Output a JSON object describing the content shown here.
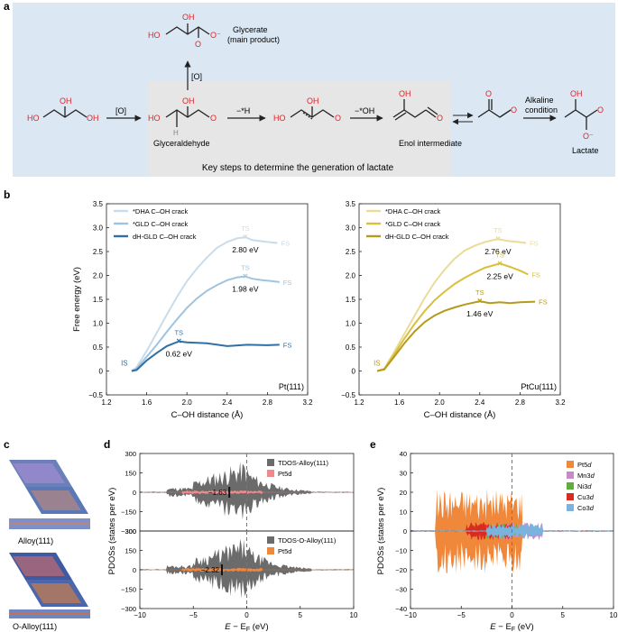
{
  "panel_a": {
    "letter": "a",
    "glycerate_name": "Glycerate",
    "glycerate_sub": "(main product)",
    "step_oxidation_up": "[O]",
    "step_oxidation": "[O]",
    "step_h": "−*H",
    "step_oh": "−*OH",
    "glyceraldehyde": "Glyceraldehyde",
    "enol": "Enol intermediate",
    "alkaline_1": "Alkaline",
    "alkaline_2": "condition",
    "lactate": "Lactate",
    "key_steps": "Key steps to determine the generation of lactate",
    "atom_ho": "HO",
    "atom_oh": "OH",
    "atom_o": "O",
    "atom_h": "H",
    "atom_o_minus": "O⁻",
    "colors": {
      "background": "#dbe8f4",
      "grey_box": "#e6e6e6",
      "oxygen": "#d9262b"
    }
  },
  "chart_data": [
    {
      "panel": "b-left",
      "letter": "b",
      "type": "line",
      "xlabel": "C–OH distance (Å)",
      "ylabel": "Free energy (eV)",
      "xlim": [
        1.2,
        3.2
      ],
      "ylim": [
        -0.5,
        3.5
      ],
      "xticks": [
        "1.2",
        "1.6",
        "2.0",
        "2.4",
        "2.8",
        "3.2"
      ],
      "yticks": [
        "−0.5",
        "0",
        "0.5",
        "1.0",
        "1.5",
        "2.0",
        "2.5",
        "3.0",
        "3.5"
      ],
      "corner_label": "Pt(111)",
      "is_label": "IS",
      "series": [
        {
          "name": "*DHA C–OH crack",
          "color": "#c9dcea",
          "ts_x": 2.58,
          "ts_y": 2.8,
          "ts_text": "2.80 eV",
          "fs_y": 2.68,
          "x": [
            1.45,
            1.5,
            1.6,
            1.7,
            1.8,
            1.9,
            2.0,
            2.1,
            2.2,
            2.3,
            2.4,
            2.5,
            2.58,
            2.65,
            2.72,
            2.8,
            2.9
          ],
          "y": [
            0,
            0.08,
            0.42,
            0.8,
            1.18,
            1.55,
            1.88,
            2.15,
            2.38,
            2.58,
            2.7,
            2.78,
            2.8,
            2.74,
            2.72,
            2.7,
            2.68
          ]
        },
        {
          "name": "*GLD C–OH crack",
          "color": "#9fc4df",
          "ts_x": 2.58,
          "ts_y": 1.98,
          "ts_text": "1.98 eV",
          "fs_y": 1.86,
          "x": [
            1.45,
            1.5,
            1.6,
            1.7,
            1.8,
            1.9,
            2.0,
            2.1,
            2.2,
            2.3,
            2.4,
            2.5,
            2.58,
            2.65,
            2.75,
            2.85,
            2.92
          ],
          "y": [
            0,
            0.05,
            0.3,
            0.55,
            0.82,
            1.08,
            1.32,
            1.52,
            1.68,
            1.8,
            1.9,
            1.96,
            1.98,
            1.93,
            1.9,
            1.88,
            1.86
          ]
        },
        {
          "name": "dH-GLD C–OH crack",
          "color": "#2f6fa6",
          "ts_x": 1.92,
          "ts_y": 0.62,
          "ts_text": "0.62 eV",
          "fs_y": 0.55,
          "x": [
            1.45,
            1.5,
            1.55,
            1.6,
            1.7,
            1.8,
            1.92,
            2.0,
            2.2,
            2.4,
            2.6,
            2.8,
            2.92
          ],
          "y": [
            0,
            0.02,
            0.12,
            0.22,
            0.38,
            0.52,
            0.62,
            0.6,
            0.58,
            0.52,
            0.55,
            0.54,
            0.55
          ]
        }
      ],
      "ts_label": "TS",
      "fs_label": "FS"
    },
    {
      "panel": "b-right",
      "type": "line",
      "xlabel": "C–OH distance (Å)",
      "ylabel": "",
      "xlim": [
        1.2,
        3.2
      ],
      "ylim": [
        -0.5,
        3.5
      ],
      "xticks": [
        "1.2",
        "1.6",
        "2.0",
        "2.4",
        "2.8",
        "3.2"
      ],
      "yticks": [
        "−0.5",
        "0",
        "0.5",
        "1.0",
        "1.5",
        "2.0",
        "2.5",
        "3.0",
        "3.5"
      ],
      "corner_label": "PtCu(111)",
      "is_label": "IS",
      "series": [
        {
          "name": "*DHA C–OH crack",
          "color": "#ecdb96",
          "ts_x": 2.58,
          "ts_y": 2.76,
          "ts_text": "2.76 eV",
          "fs_y": 2.68,
          "x": [
            1.38,
            1.45,
            1.55,
            1.65,
            1.75,
            1.85,
            1.95,
            2.05,
            2.15,
            2.25,
            2.35,
            2.45,
            2.58,
            2.68,
            2.78,
            2.86
          ],
          "y": [
            0,
            0.05,
            0.4,
            0.78,
            1.15,
            1.52,
            1.85,
            2.12,
            2.35,
            2.52,
            2.62,
            2.7,
            2.76,
            2.72,
            2.7,
            2.68
          ]
        },
        {
          "name": "*GLD C–OH crack",
          "color": "#d9bf3c",
          "ts_x": 2.6,
          "ts_y": 2.25,
          "ts_text": "2.25 eV",
          "fs_y": 2.02,
          "x": [
            1.38,
            1.45,
            1.55,
            1.65,
            1.75,
            1.85,
            1.95,
            2.05,
            2.15,
            2.25,
            2.35,
            2.45,
            2.6,
            2.7,
            2.8,
            2.88
          ],
          "y": [
            0,
            0.04,
            0.35,
            0.68,
            0.98,
            1.25,
            1.48,
            1.66,
            1.82,
            1.95,
            2.06,
            2.16,
            2.25,
            2.18,
            2.1,
            2.02
          ]
        },
        {
          "name": "dH-GLD C–OH crack",
          "color": "#b69a1c",
          "ts_x": 2.4,
          "ts_y": 1.46,
          "ts_text": "1.46 eV",
          "fs_y": 1.45,
          "x": [
            1.38,
            1.45,
            1.55,
            1.65,
            1.75,
            1.85,
            1.95,
            2.05,
            2.15,
            2.25,
            2.4,
            2.5,
            2.6,
            2.7,
            2.8,
            2.95
          ],
          "y": [
            0,
            0.03,
            0.3,
            0.58,
            0.82,
            1.02,
            1.16,
            1.26,
            1.33,
            1.39,
            1.46,
            1.42,
            1.44,
            1.42,
            1.44,
            1.45
          ]
        }
      ],
      "ts_label": "TS",
      "fs_label": "FS"
    },
    {
      "panel": "d",
      "letter": "d",
      "type": "area",
      "ylabel": "PDOSs (states per eV)",
      "xlabel_main": "E",
      "xlabel_minus": " − E",
      "xlabel_sub": "F",
      "xlabel_unit": " (eV)",
      "xlim": [
        -10,
        10
      ],
      "xticks": [
        "−10",
        "−5",
        "0",
        "5",
        "10"
      ],
      "top": {
        "ylim": [
          -300,
          300
        ],
        "yticks": [
          "300",
          "150",
          "0",
          "−150",
          "−300"
        ],
        "legend": [
          "TDOS-Alloy(111)",
          "Pt5d"
        ],
        "tdos_color": "#6b6b6b",
        "pdos_color": "#f08a8a",
        "d_band": "−1.63"
      },
      "bottom": {
        "ylim": [
          -300,
          300
        ],
        "yticks": [
          "300",
          "150",
          "0",
          "−150",
          "−300"
        ],
        "legend": [
          "TDOS-O-Alloy(111)",
          "Pt5d"
        ],
        "tdos_color": "#6b6b6b",
        "pdos_color": "#f0873a",
        "d_band": "−2.32"
      }
    },
    {
      "panel": "e",
      "letter": "e",
      "type": "area",
      "ylabel": "PDOSs (states per eV)",
      "xlabel_main": "E",
      "xlabel_minus": " − E",
      "xlabel_sub": "F",
      "xlabel_unit": " (eV)",
      "xlim": [
        -10,
        10
      ],
      "ylim": [
        -40,
        40
      ],
      "xticks": [
        "−10",
        "−5",
        "0",
        "5",
        "10"
      ],
      "yticks": [
        "40",
        "30",
        "20",
        "10",
        "0",
        "−10",
        "−20",
        "−30",
        "−40"
      ],
      "legend": [
        {
          "label": "Pt5d",
          "color": "#f0883c"
        },
        {
          "label": "Mn3d",
          "color": "#c98bc4"
        },
        {
          "label": "Ni3d",
          "color": "#5dae3a"
        },
        {
          "label": "Cu3d",
          "color": "#d92b20"
        },
        {
          "label": "Co3d",
          "color": "#7ab3dd"
        }
      ]
    }
  ],
  "panel_c": {
    "letter": "c",
    "alloy": "Alloy(111)",
    "o_alloy": "O-Alloy(111)"
  }
}
